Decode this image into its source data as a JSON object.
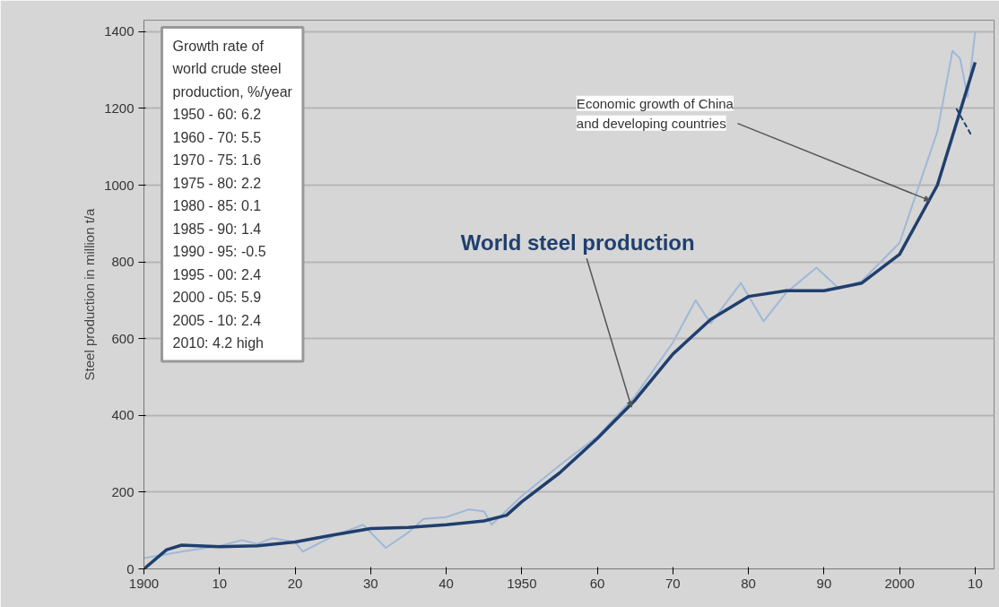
{
  "chart_data": {
    "type": "line",
    "ylabel": "Steel production in million t/a",
    "xlim": [
      1900,
      2012.5
    ],
    "ylim": [
      0,
      1430
    ],
    "xticks": [
      {
        "value": 1900,
        "label": "1900"
      },
      {
        "value": 1910,
        "label": "10"
      },
      {
        "value": 1920,
        "label": "20"
      },
      {
        "value": 1930,
        "label": "30"
      },
      {
        "value": 1940,
        "label": "40"
      },
      {
        "value": 1950,
        "label": "1950"
      },
      {
        "value": 1960,
        "label": "60"
      },
      {
        "value": 1970,
        "label": "70"
      },
      {
        "value": 1980,
        "label": "80"
      },
      {
        "value": 1990,
        "label": "90"
      },
      {
        "value": 2000,
        "label": "2000"
      },
      {
        "value": 2010,
        "label": "10"
      }
    ],
    "yticks": [
      0,
      200,
      400,
      600,
      800,
      1000,
      1200,
      1400
    ],
    "grid": "y",
    "legend": false,
    "series": [
      {
        "color": "#9fb8d8",
        "x": [
          1900,
          1905,
          1910,
          1913,
          1915,
          1917,
          1920,
          1921,
          1925,
          1929,
          1932,
          1935,
          1937,
          1940,
          1943,
          1945,
          1946,
          1950,
          1955,
          1960,
          1965,
          1970,
          1973,
          1975,
          1979,
          1982,
          1985,
          1989,
          1992,
          1995,
          2000,
          2005,
          2007,
          2008,
          2009,
          2010
        ],
        "values": [
          28,
          45,
          60,
          75,
          65,
          80,
          70,
          45,
          85,
          115,
          55,
          95,
          130,
          135,
          155,
          150,
          115,
          190,
          270,
          345,
          450,
          590,
          700,
          640,
          745,
          645,
          720,
          785,
          730,
          750,
          850,
          1140,
          1350,
          1330,
          1230,
          1400
        ]
      },
      {
        "name": "World steel production",
        "color": "#1f3f6e",
        "x": [
          1900,
          1903,
          1905,
          1910,
          1915,
          1920,
          1925,
          1930,
          1935,
          1940,
          1945,
          1948,
          1950,
          1955,
          1960,
          1965,
          1970,
          1975,
          1980,
          1985,
          1990,
          1995,
          2000,
          2005,
          2010
        ],
        "values": [
          0,
          50,
          62,
          58,
          60,
          70,
          88,
          105,
          108,
          115,
          125,
          140,
          175,
          250,
          340,
          440,
          560,
          650,
          710,
          725,
          725,
          745,
          820,
          1000,
          1320
        ]
      },
      {
        "color": "#1f3f6e",
        "line_style": "dashed",
        "x": [
          2007.5,
          2009.5
        ],
        "values": [
          1200,
          1130
        ]
      }
    ],
    "annotations": [
      "Growth rate of world crude steel production, %/year",
      "1950 - 60:  6.2",
      "1960 - 70:  5.5",
      "1970 - 75:  1.6",
      "1975 - 80:  2.2",
      "1980 - 85:  0.1",
      "1985 - 90:  1.4",
      "1990 - 95: -0.5",
      "1995 - 00:  2.4",
      "2000 - 05:  5.9",
      "2005 - 10:  2.4",
      "2010:  4.2 high",
      {
        "text": "Economic growth of China and developing countries",
        "x": 2004,
        "y": 960
      }
    ]
  }
}
